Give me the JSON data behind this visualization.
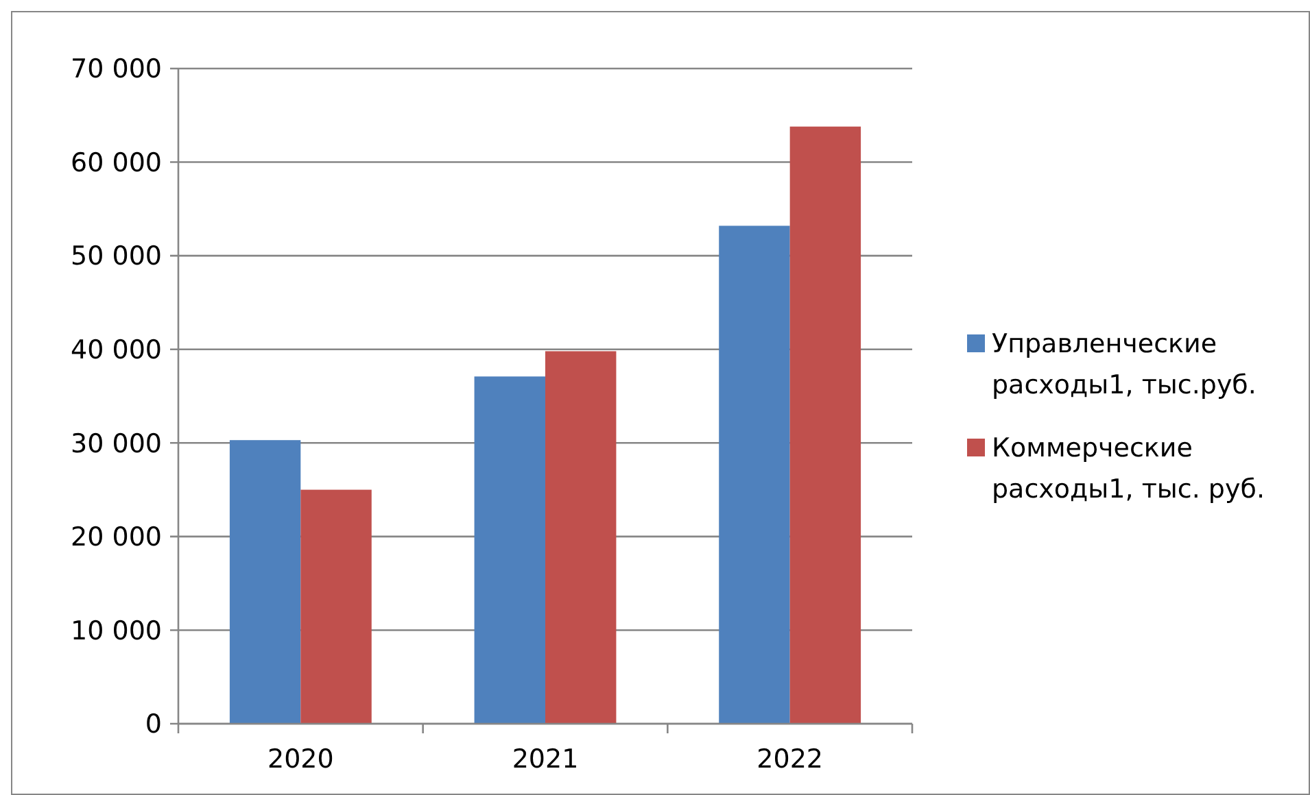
{
  "chart_data": {
    "type": "bar",
    "categories": [
      "2020",
      "2021",
      "2022"
    ],
    "series": [
      {
        "name": "Управленческие расходы1, тыс.руб.",
        "color": "#4f81bd",
        "values": [
          30300,
          37100,
          53200
        ]
      },
      {
        "name": "Коммерческие расходы1, тыс. руб.",
        "color": "#c0504d",
        "values": [
          25000,
          39800,
          63800
        ]
      }
    ],
    "ylim": [
      0,
      70000
    ],
    "yticks": [
      {
        "value": 0,
        "label": "0"
      },
      {
        "value": 10000,
        "label": "10 000"
      },
      {
        "value": 20000,
        "label": "20 000"
      },
      {
        "value": 30000,
        "label": "30 000"
      },
      {
        "value": 40000,
        "label": "40 000"
      },
      {
        "value": 50000,
        "label": "50 000"
      },
      {
        "value": 60000,
        "label": "60 000"
      },
      {
        "value": 70000,
        "label": "70 000"
      }
    ],
    "grid": "y",
    "legend": "right"
  }
}
